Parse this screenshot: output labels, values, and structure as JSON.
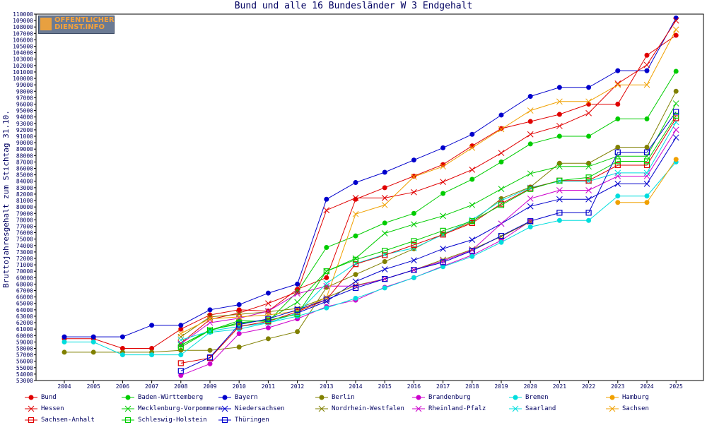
{
  "logo": {
    "line1": "OFFENTLICHER",
    "line2": "DIENST.INFO"
  },
  "chart_data": {
    "type": "line",
    "title": "Bund und alle 16 Bundesländer W 3 Endgehalt",
    "ylabel": "Bruttojahresgehalt zum Stichtag 31.10.",
    "xlabel": "",
    "ylim": [
      53000,
      110000
    ],
    "ytick_step": 1000,
    "grid": false,
    "legend_position": "bottom",
    "x": [
      2004,
      2005,
      2006,
      2007,
      2008,
      2009,
      2010,
      2011,
      2012,
      2013,
      2014,
      2015,
      2016,
      2017,
      2018,
      2019,
      2020,
      2021,
      2022,
      2023,
      2024,
      2025
    ],
    "series": [
      {
        "name": "Bund",
        "color": "#e00000",
        "marker": "dot",
        "values": [
          59500,
          59500,
          58000,
          58000,
          61000,
          63200,
          64000,
          63800,
          67200,
          69000,
          81200,
          83000,
          84800,
          86600,
          89500,
          92200,
          93300,
          94400,
          96000,
          96000,
          103600,
          106700
        ]
      },
      {
        "name": "Baden-Württemberg",
        "color": "#00cc00",
        "marker": "dot",
        "values": [
          null,
          null,
          null,
          null,
          58500,
          60800,
          62300,
          62200,
          66800,
          73700,
          75500,
          77500,
          79000,
          82100,
          84300,
          87000,
          89800,
          91000,
          91000,
          93700,
          93700,
          101100
        ]
      },
      {
        "name": "Bayern",
        "color": "#0000cc",
        "marker": "dot",
        "values": [
          59800,
          59800,
          59800,
          61600,
          61600,
          64000,
          64800,
          66600,
          68000,
          81200,
          83800,
          85400,
          87300,
          89200,
          91300,
          94300,
          97200,
          98600,
          98600,
          101200,
          101200,
          109400
        ]
      },
      {
        "name": "Berlin",
        "color": "#808000",
        "marker": "dot",
        "values": [
          57400,
          57400,
          57400,
          57400,
          57700,
          57700,
          58200,
          59500,
          60600,
          67500,
          69500,
          71500,
          73500,
          75800,
          77700,
          81300,
          83100,
          86800,
          86800,
          89300,
          89300,
          98000
        ]
      },
      {
        "name": "Brandenburg",
        "color": "#cc00cc",
        "marker": "dot",
        "values": [
          null,
          null,
          null,
          null,
          53800,
          55600,
          60300,
          61200,
          62600,
          64500,
          65500,
          67500,
          69000,
          70800,
          72500,
          74800,
          77800,
          null,
          null,
          null,
          null,
          null
        ]
      },
      {
        "name": "Bremen",
        "color": "#00dddd",
        "marker": "dot",
        "values": [
          59000,
          59000,
          57000,
          57000,
          57000,
          60500,
          61000,
          62000,
          63000,
          64300,
          65800,
          67400,
          69000,
          70700,
          72300,
          74500,
          76900,
          77900,
          77900,
          81700,
          81700,
          87000
        ]
      },
      {
        "name": "Hamburg",
        "color": "#f0a000",
        "marker": "dot",
        "values": [
          null,
          null,
          null,
          null,
          null,
          null,
          null,
          null,
          null,
          null,
          null,
          null,
          null,
          null,
          null,
          null,
          null,
          null,
          null,
          80700,
          80700,
          87400
        ]
      },
      {
        "name": "Hessen",
        "color": "#e00000",
        "marker": "x",
        "values": [
          null,
          null,
          null,
          null,
          58800,
          62500,
          63500,
          65000,
          66800,
          79500,
          81400,
          81400,
          82300,
          83900,
          85800,
          88400,
          91300,
          92600,
          94600,
          99200,
          102100,
          109000
        ]
      },
      {
        "name": "Mecklenburg-Vorpommern",
        "color": "#00cc00",
        "marker": "x",
        "values": [
          null,
          null,
          null,
          null,
          58500,
          60900,
          61800,
          62500,
          65200,
          70000,
          72000,
          75900,
          77300,
          78600,
          80300,
          82800,
          85200,
          86300,
          86300,
          87900,
          87900,
          96100
        ]
      },
      {
        "name": "Niedersachsen",
        "color": "#0000cc",
        "marker": "x",
        "values": [
          null,
          null,
          null,
          null,
          null,
          null,
          null,
          null,
          63500,
          65300,
          68400,
          70300,
          71700,
          73500,
          74900,
          77400,
          80100,
          81200,
          81200,
          83600,
          83600,
          90800
        ]
      },
      {
        "name": "Nordrhein-Westfalen",
        "color": "#808000",
        "marker": "x",
        "values": [
          null,
          null,
          null,
          null,
          59800,
          62900,
          63300,
          63700,
          64200,
          65900,
          67800,
          68800,
          70200,
          71800,
          73400,
          75400,
          77700,
          null,
          null,
          null,
          null,
          null
        ]
      },
      {
        "name": "Rheinland-Pfalz",
        "color": "#cc00cc",
        "marker": "x",
        "values": [
          null,
          null,
          null,
          null,
          58700,
          62000,
          62700,
          63800,
          66500,
          67700,
          67700,
          68800,
          70200,
          71600,
          73300,
          77400,
          81300,
          82600,
          82600,
          84800,
          84800,
          92000
        ]
      },
      {
        "name": "Saarland",
        "color": "#00dddd",
        "marker": "x",
        "values": [
          null,
          null,
          null,
          null,
          59300,
          60700,
          61400,
          62000,
          63500,
          68100,
          71200,
          72600,
          73600,
          75700,
          78000,
          81000,
          83000,
          84000,
          84000,
          85300,
          85300,
          93200
        ]
      },
      {
        "name": "Sachsen",
        "color": "#f0a000",
        "marker": "x",
        "values": [
          null,
          null,
          null,
          null,
          60300,
          62600,
          62900,
          63200,
          63800,
          65900,
          78900,
          80300,
          84700,
          86300,
          89200,
          92100,
          95000,
          96400,
          96400,
          99000,
          99000,
          107600
        ]
      },
      {
        "name": "Sachsen-Anhalt",
        "color": "#e00000",
        "marker": "square",
        "values": [
          null,
          null,
          null,
          null,
          55700,
          56500,
          61400,
          62200,
          63700,
          65600,
          71100,
          72500,
          74100,
          75700,
          77500,
          80500,
          82900,
          84100,
          84100,
          86500,
          86500,
          93800
        ]
      },
      {
        "name": "Schleswig-Holstein",
        "color": "#00cc00",
        "marker": "square",
        "values": [
          null,
          null,
          null,
          null,
          58200,
          60800,
          62000,
          62400,
          63300,
          70000,
          71800,
          73200,
          74700,
          76300,
          77800,
          80300,
          82800,
          84100,
          84600,
          87100,
          87100,
          94200
        ]
      },
      {
        "name": "Thüringen",
        "color": "#0000cc",
        "marker": "square",
        "values": [
          null,
          null,
          null,
          null,
          54500,
          56600,
          61700,
          62600,
          64000,
          65600,
          67400,
          68800,
          70200,
          71400,
          73200,
          75500,
          77800,
          79100,
          79100,
          88500,
          88500,
          94800
        ]
      }
    ]
  }
}
